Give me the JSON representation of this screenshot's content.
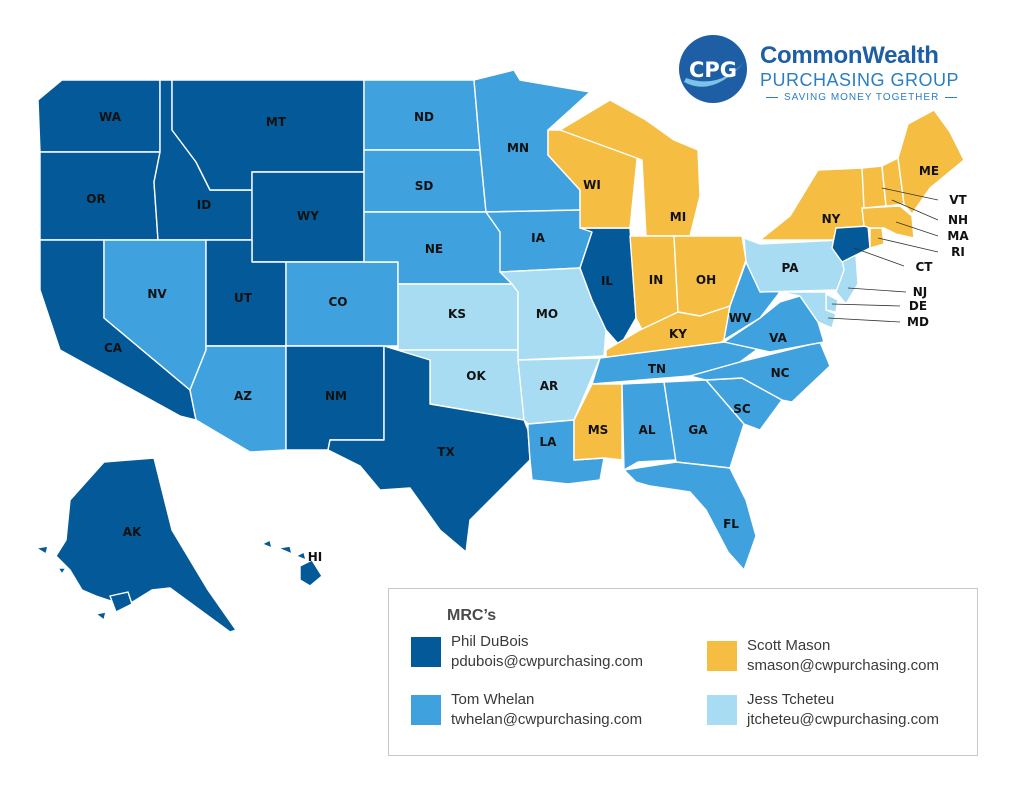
{
  "brand": {
    "badge_text": "CPG",
    "name": "CommonWealth",
    "sub": "PURCHASING GROUP",
    "tagline": "SAVING MONEY TOGETHER",
    "colors": {
      "primary": "#1d5ea4",
      "secondary": "#2a7ec2"
    }
  },
  "legend": {
    "title": "MRC’s",
    "entries": [
      {
        "name": "Phil DuBois",
        "email": "pdubois@cwpurchasing.com",
        "color": "#045a99"
      },
      {
        "name": "Tom Whelan",
        "email": "twhelan@cwpurchasing.com",
        "color": "#3fa1dd"
      },
      {
        "name": "Scott Mason",
        "email": "smason@cwpurchasing.com",
        "color": "#f5bd41"
      },
      {
        "name": "Jess Tcheteu",
        "email": "jtcheteu@cwpurchasing.com",
        "color": "#a7dcf2"
      }
    ]
  },
  "states": {
    "WA": "Phil DuBois",
    "OR": "Phil DuBois",
    "CA": "Phil DuBois",
    "ID": "Phil DuBois",
    "MT": "Phil DuBois",
    "WY": "Phil DuBois",
    "UT": "Phil DuBois",
    "NM": "Phil DuBois",
    "TX": "Phil DuBois",
    "IL": "Phil DuBois",
    "CT": "Phil DuBois",
    "AK": "Phil DuBois",
    "HI": "Phil DuBois",
    "NV": "Tom Whelan",
    "AZ": "Tom Whelan",
    "CO": "Tom Whelan",
    "ND": "Tom Whelan",
    "SD": "Tom Whelan",
    "NE": "Tom Whelan",
    "MN": "Tom Whelan",
    "IA": "Tom Whelan",
    "LA": "Tom Whelan",
    "AL": "Tom Whelan",
    "GA": "Tom Whelan",
    "FL": "Tom Whelan",
    "SC": "Tom Whelan",
    "NC": "Tom Whelan",
    "TN": "Tom Whelan",
    "VA": "Tom Whelan",
    "WV": "Tom Whelan",
    "WI": "Scott Mason",
    "MI": "Scott Mason",
    "IN": "Scott Mason",
    "OH": "Scott Mason",
    "KY": "Scott Mason",
    "MS": "Scott Mason",
    "NY": "Scott Mason",
    "ME": "Scott Mason",
    "VT": "Scott Mason",
    "NH": "Scott Mason",
    "MA": "Scott Mason",
    "RI": "Scott Mason",
    "KS": "Jess Tcheteu",
    "OK": "Jess Tcheteu",
    "MO": "Jess Tcheteu",
    "AR": "Jess Tcheteu",
    "PA": "Jess Tcheteu",
    "NJ": "Jess Tcheteu",
    "DE": "Jess Tcheteu",
    "MD": "Jess Tcheteu"
  },
  "callout_labels": [
    "VT",
    "NH",
    "MA",
    "RI",
    "CT",
    "NJ",
    "DE",
    "MD"
  ]
}
